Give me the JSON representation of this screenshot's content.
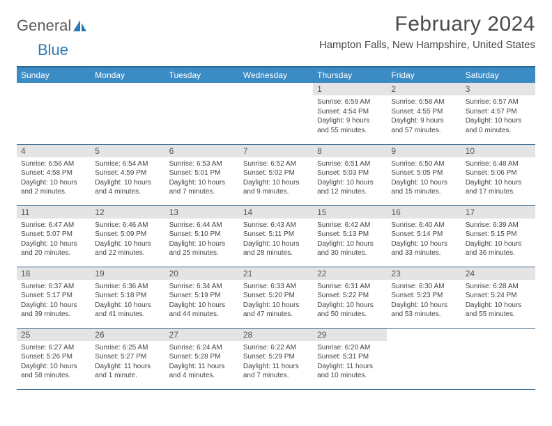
{
  "logo": {
    "part1": "General",
    "part2": "Blue"
  },
  "title": "February 2024",
  "location": "Hampton Falls, New Hampshire, United States",
  "colors": {
    "header_bg": "#3b8bc5",
    "header_border": "#2a6a9a",
    "row_border": "#3b6a8f",
    "daynum_bg": "#e4e4e4",
    "text": "#444444",
    "logo_gray": "#5a5a5a",
    "logo_blue": "#2a7ab8",
    "background": "#ffffff"
  },
  "typography": {
    "title_fontsize": 30,
    "location_fontsize": 15,
    "dayhead_fontsize": 12,
    "daynum_fontsize": 12,
    "body_fontsize": 10
  },
  "day_headers": [
    "Sunday",
    "Monday",
    "Tuesday",
    "Wednesday",
    "Thursday",
    "Friday",
    "Saturday"
  ],
  "weeks": [
    [
      {
        "num": "",
        "lines": []
      },
      {
        "num": "",
        "lines": []
      },
      {
        "num": "",
        "lines": []
      },
      {
        "num": "",
        "lines": []
      },
      {
        "num": "1",
        "lines": [
          "Sunrise: 6:59 AM",
          "Sunset: 4:54 PM",
          "Daylight: 9 hours and 55 minutes."
        ]
      },
      {
        "num": "2",
        "lines": [
          "Sunrise: 6:58 AM",
          "Sunset: 4:55 PM",
          "Daylight: 9 hours and 57 minutes."
        ]
      },
      {
        "num": "3",
        "lines": [
          "Sunrise: 6:57 AM",
          "Sunset: 4:57 PM",
          "Daylight: 10 hours and 0 minutes."
        ]
      }
    ],
    [
      {
        "num": "4",
        "lines": [
          "Sunrise: 6:56 AM",
          "Sunset: 4:58 PM",
          "Daylight: 10 hours and 2 minutes."
        ]
      },
      {
        "num": "5",
        "lines": [
          "Sunrise: 6:54 AM",
          "Sunset: 4:59 PM",
          "Daylight: 10 hours and 4 minutes."
        ]
      },
      {
        "num": "6",
        "lines": [
          "Sunrise: 6:53 AM",
          "Sunset: 5:01 PM",
          "Daylight: 10 hours and 7 minutes."
        ]
      },
      {
        "num": "7",
        "lines": [
          "Sunrise: 6:52 AM",
          "Sunset: 5:02 PM",
          "Daylight: 10 hours and 9 minutes."
        ]
      },
      {
        "num": "8",
        "lines": [
          "Sunrise: 6:51 AM",
          "Sunset: 5:03 PM",
          "Daylight: 10 hours and 12 minutes."
        ]
      },
      {
        "num": "9",
        "lines": [
          "Sunrise: 6:50 AM",
          "Sunset: 5:05 PM",
          "Daylight: 10 hours and 15 minutes."
        ]
      },
      {
        "num": "10",
        "lines": [
          "Sunrise: 6:48 AM",
          "Sunset: 5:06 PM",
          "Daylight: 10 hours and 17 minutes."
        ]
      }
    ],
    [
      {
        "num": "11",
        "lines": [
          "Sunrise: 6:47 AM",
          "Sunset: 5:07 PM",
          "Daylight: 10 hours and 20 minutes."
        ]
      },
      {
        "num": "12",
        "lines": [
          "Sunrise: 6:46 AM",
          "Sunset: 5:09 PM",
          "Daylight: 10 hours and 22 minutes."
        ]
      },
      {
        "num": "13",
        "lines": [
          "Sunrise: 6:44 AM",
          "Sunset: 5:10 PM",
          "Daylight: 10 hours and 25 minutes."
        ]
      },
      {
        "num": "14",
        "lines": [
          "Sunrise: 6:43 AM",
          "Sunset: 5:11 PM",
          "Daylight: 10 hours and 28 minutes."
        ]
      },
      {
        "num": "15",
        "lines": [
          "Sunrise: 6:42 AM",
          "Sunset: 5:13 PM",
          "Daylight: 10 hours and 30 minutes."
        ]
      },
      {
        "num": "16",
        "lines": [
          "Sunrise: 6:40 AM",
          "Sunset: 5:14 PM",
          "Daylight: 10 hours and 33 minutes."
        ]
      },
      {
        "num": "17",
        "lines": [
          "Sunrise: 6:39 AM",
          "Sunset: 5:15 PM",
          "Daylight: 10 hours and 36 minutes."
        ]
      }
    ],
    [
      {
        "num": "18",
        "lines": [
          "Sunrise: 6:37 AM",
          "Sunset: 5:17 PM",
          "Daylight: 10 hours and 39 minutes."
        ]
      },
      {
        "num": "19",
        "lines": [
          "Sunrise: 6:36 AM",
          "Sunset: 5:18 PM",
          "Daylight: 10 hours and 41 minutes."
        ]
      },
      {
        "num": "20",
        "lines": [
          "Sunrise: 6:34 AM",
          "Sunset: 5:19 PM",
          "Daylight: 10 hours and 44 minutes."
        ]
      },
      {
        "num": "21",
        "lines": [
          "Sunrise: 6:33 AM",
          "Sunset: 5:20 PM",
          "Daylight: 10 hours and 47 minutes."
        ]
      },
      {
        "num": "22",
        "lines": [
          "Sunrise: 6:31 AM",
          "Sunset: 5:22 PM",
          "Daylight: 10 hours and 50 minutes."
        ]
      },
      {
        "num": "23",
        "lines": [
          "Sunrise: 6:30 AM",
          "Sunset: 5:23 PM",
          "Daylight: 10 hours and 53 minutes."
        ]
      },
      {
        "num": "24",
        "lines": [
          "Sunrise: 6:28 AM",
          "Sunset: 5:24 PM",
          "Daylight: 10 hours and 55 minutes."
        ]
      }
    ],
    [
      {
        "num": "25",
        "lines": [
          "Sunrise: 6:27 AM",
          "Sunset: 5:26 PM",
          "Daylight: 10 hours and 58 minutes."
        ]
      },
      {
        "num": "26",
        "lines": [
          "Sunrise: 6:25 AM",
          "Sunset: 5:27 PM",
          "Daylight: 11 hours and 1 minute."
        ]
      },
      {
        "num": "27",
        "lines": [
          "Sunrise: 6:24 AM",
          "Sunset: 5:28 PM",
          "Daylight: 11 hours and 4 minutes."
        ]
      },
      {
        "num": "28",
        "lines": [
          "Sunrise: 6:22 AM",
          "Sunset: 5:29 PM",
          "Daylight: 11 hours and 7 minutes."
        ]
      },
      {
        "num": "29",
        "lines": [
          "Sunrise: 6:20 AM",
          "Sunset: 5:31 PM",
          "Daylight: 11 hours and 10 minutes."
        ]
      },
      {
        "num": "",
        "lines": []
      },
      {
        "num": "",
        "lines": []
      }
    ]
  ]
}
